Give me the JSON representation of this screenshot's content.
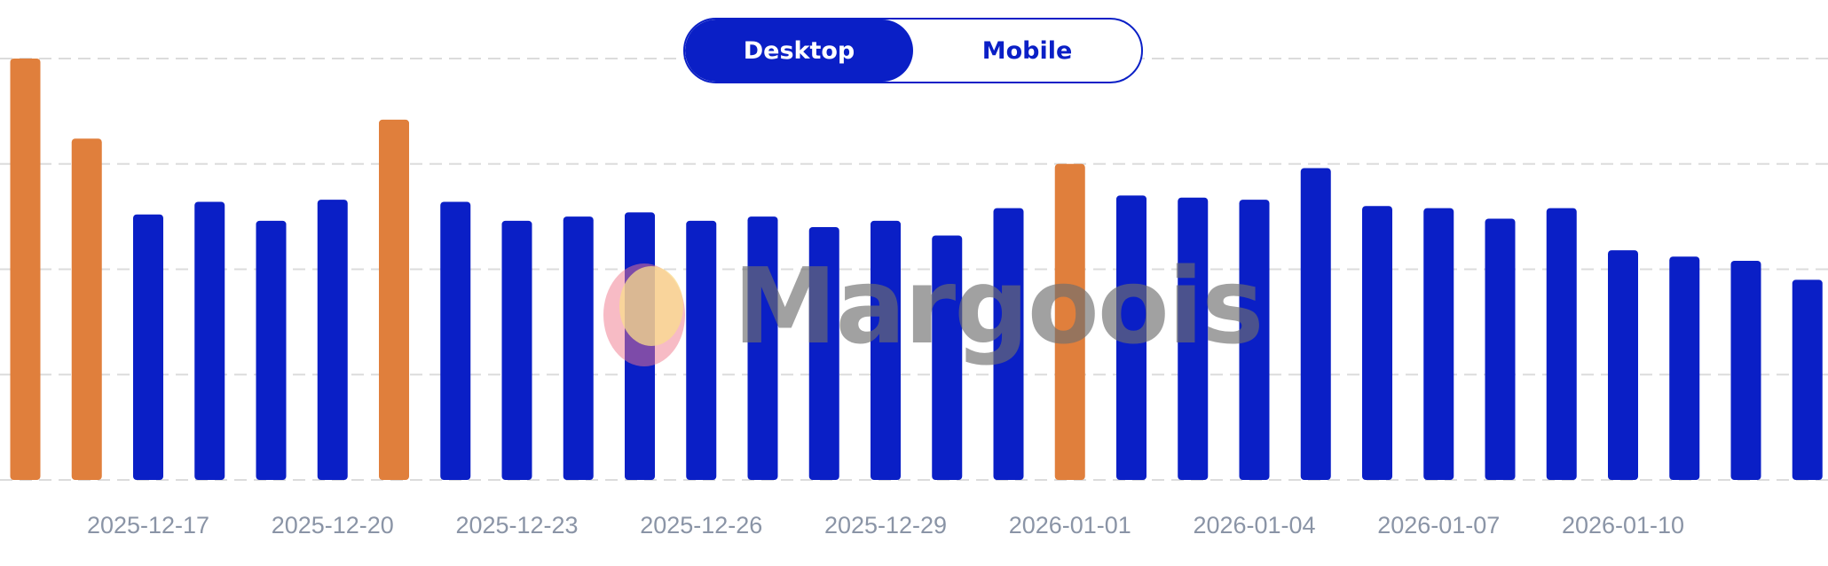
{
  "toggle": {
    "options": [
      "Desktop",
      "Mobile"
    ],
    "selected": "Desktop"
  },
  "watermark": {
    "text": "Margoois"
  },
  "colors": {
    "weekend_bar": "#e07f3c",
    "weekday_bar": "#0a1fc6",
    "tick_label": "#8a94a6",
    "grid": "#dcdcdc",
    "toggle_accent": "#0a1fc6"
  },
  "chart_data": {
    "type": "bar",
    "title": "",
    "xlabel": "",
    "ylabel": "",
    "ylim": [
      0,
      100
    ],
    "grid": true,
    "y_ticks_shown": false,
    "categories": [
      "2025-12-15",
      "2025-12-16",
      "2025-12-17",
      "2025-12-18",
      "2025-12-19",
      "2025-12-20",
      "2025-12-21",
      "2025-12-22",
      "2025-12-23",
      "2025-12-24",
      "2025-12-25",
      "2025-12-26",
      "2025-12-27",
      "2025-12-28",
      "2025-12-29",
      "2025-12-30",
      "2025-12-31",
      "2026-01-01",
      "2026-01-02",
      "2026-01-03",
      "2026-01-04",
      "2026-01-05",
      "2026-01-06",
      "2026-01-07",
      "2026-01-08",
      "2026-01-09",
      "2026-01-10",
      "2026-01-11",
      "2026-01-12",
      "2026-01-13"
    ],
    "tick_labels": [
      "",
      "",
      "2025-12-17",
      "",
      "",
      "2025-12-20",
      "",
      "",
      "2025-12-23",
      "",
      "",
      "2025-12-26",
      "",
      "",
      "2025-12-29",
      "",
      "",
      "2026-01-01",
      "",
      "",
      "2026-01-04",
      "",
      "",
      "2026-01-07",
      "",
      "",
      "2026-01-10",
      "",
      "",
      ""
    ],
    "values": [
      100,
      81,
      63,
      66,
      61.5,
      66.5,
      85.5,
      66,
      61.5,
      62.5,
      63.5,
      61.5,
      62.5,
      60,
      61.5,
      58,
      64.5,
      75,
      67.5,
      67,
      66.5,
      74,
      65,
      64.5,
      62,
      64.5,
      54.5,
      53,
      52,
      47.5
    ],
    "highlight": [
      true,
      true,
      false,
      false,
      false,
      false,
      true,
      false,
      false,
      false,
      false,
      false,
      false,
      false,
      false,
      false,
      false,
      true,
      false,
      false,
      false,
      false,
      false,
      false,
      false,
      false,
      false,
      false,
      false,
      false
    ]
  }
}
